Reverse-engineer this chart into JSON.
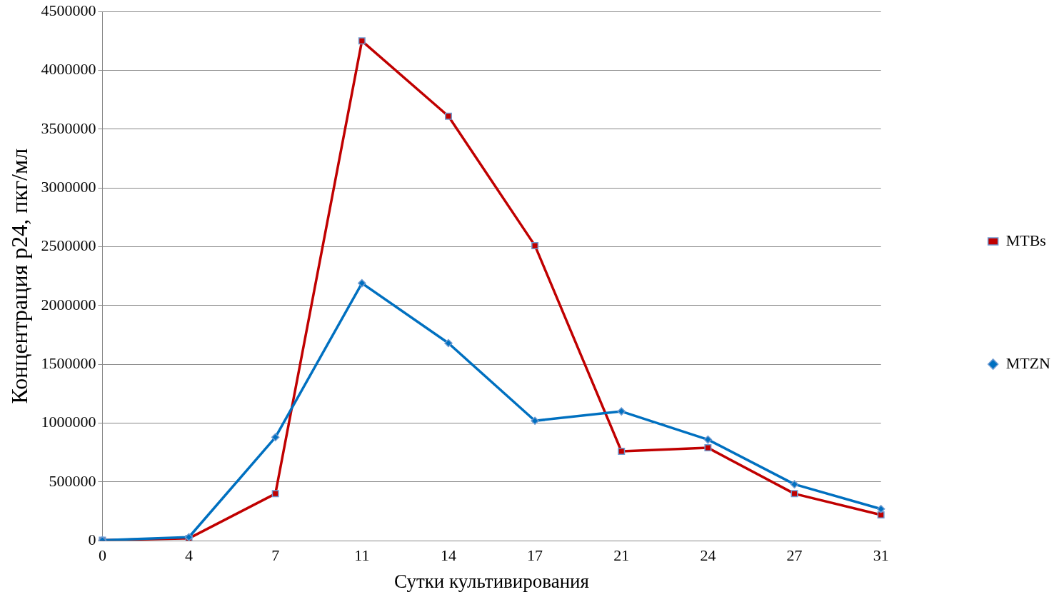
{
  "chart_data": {
    "type": "line",
    "xlabel": "Сутки культивирования",
    "ylabel": "Концентрация p24, пкг/мл",
    "categories": [
      "0",
      "4",
      "7",
      "11",
      "14",
      "17",
      "21",
      "24",
      "27",
      "31"
    ],
    "series": [
      {
        "name": "MTBs",
        "color": "#c00000",
        "marker": "square",
        "values": [
          5000,
          20000,
          400000,
          4250000,
          3610000,
          2510000,
          760000,
          790000,
          400000,
          220000
        ]
      },
      {
        "name": "MTZN",
        "color": "#0070c0",
        "marker": "diamond",
        "values": [
          5000,
          30000,
          880000,
          2190000,
          1680000,
          1020000,
          1100000,
          860000,
          480000,
          270000
        ]
      }
    ],
    "ylim": [
      0,
      4500000
    ],
    "yticks": [
      0,
      500000,
      1000000,
      1500000,
      2000000,
      2500000,
      3000000,
      3500000,
      4000000,
      4500000
    ],
    "grid": "y",
    "legend": "right",
    "line_style": "solid"
  }
}
